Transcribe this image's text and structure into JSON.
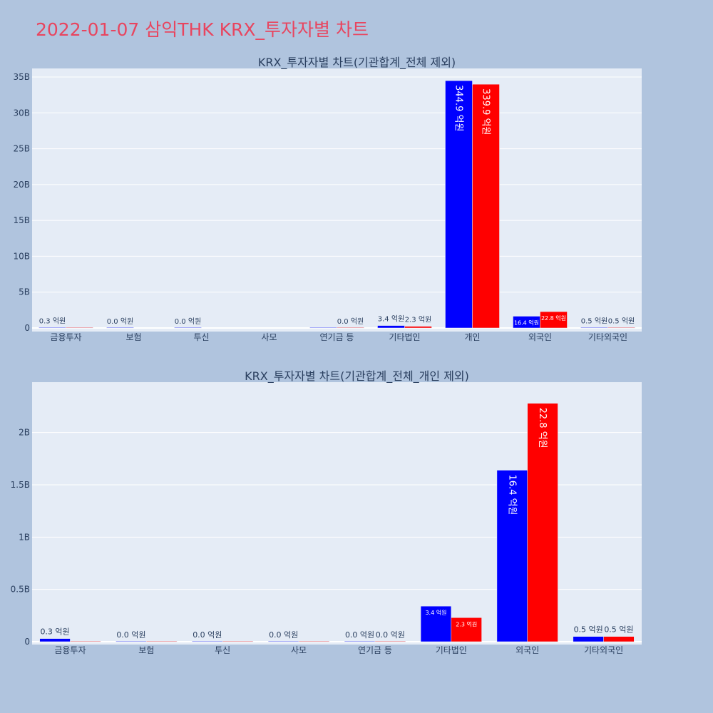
{
  "page_title": "2022-01-07 삼익THK KRX_투자자별 차트",
  "colors": {
    "series_a": "#0000ff",
    "series_b": "#ff0000",
    "plot_bg": "#e5ecf6",
    "page_bg": "#b0c4de",
    "title": "#e8455f"
  },
  "chart_data": [
    {
      "type": "bar",
      "title": "KRX_투자자별 차트(기관합계_전체 제외)",
      "categories": [
        "금융투자",
        "보험",
        "투신",
        "사모",
        "연기금 등",
        "기타법인",
        "개인",
        "외국인",
        "기타외국인"
      ],
      "series": [
        {
          "values": [
            0.03,
            0.0,
            0.0,
            null,
            0.0,
            0.34,
            34.49,
            1.64,
            0.05
          ],
          "labels": [
            "0.3 억원",
            "0.0 억원",
            "0.0 억원",
            "",
            "",
            "3.4 억원",
            "344.9 억원",
            "16.4 억원",
            "0.5 억원"
          ]
        },
        {
          "values": [
            0.0,
            null,
            null,
            null,
            0.0,
            0.23,
            33.99,
            2.28,
            0.05
          ],
          "labels": [
            "",
            "",
            "",
            "",
            "0.0 억원",
            "2.3 억원",
            "339.9 억원",
            "22.8 억원",
            "0.5 억원"
          ]
        }
      ],
      "ylim": [
        0,
        35
      ],
      "yticks": [
        0,
        5,
        10,
        15,
        20,
        25,
        30,
        35
      ],
      "yticklabels": [
        "0",
        "5B",
        "10B",
        "15B",
        "20B",
        "25B",
        "30B",
        "35B"
      ],
      "grid": true
    },
    {
      "type": "bar",
      "title": "KRX_투자자별 차트(기관합계_전체_개인 제외)",
      "categories": [
        "금융투자",
        "보험",
        "투신",
        "사모",
        "연기금 등",
        "기타법인",
        "외국인",
        "기타외국인"
      ],
      "series": [
        {
          "values": [
            0.03,
            0.0,
            0.0,
            0.0,
            0.0,
            0.34,
            1.64,
            0.05
          ],
          "labels": [
            "0.3 억원",
            "0.0 억원",
            "0.0 억원",
            "0.0 억원",
            "0.0 억원",
            "3.4 억원",
            "16.4 억원",
            "0.5 억원"
          ]
        },
        {
          "values": [
            0.0,
            0.0,
            0.0,
            0.0,
            0.0,
            0.23,
            2.28,
            0.05
          ],
          "labels": [
            "",
            "",
            "",
            "",
            "0.0 억원",
            "2.3 억원",
            "22.8 억원",
            "0.5 억원"
          ]
        }
      ],
      "ylim": [
        0,
        2.4
      ],
      "yticks": [
        0,
        0.5,
        1,
        1.5,
        2
      ],
      "yticklabels": [
        "0",
        "0.5B",
        "1B",
        "1.5B",
        "2B"
      ],
      "grid": true
    }
  ]
}
